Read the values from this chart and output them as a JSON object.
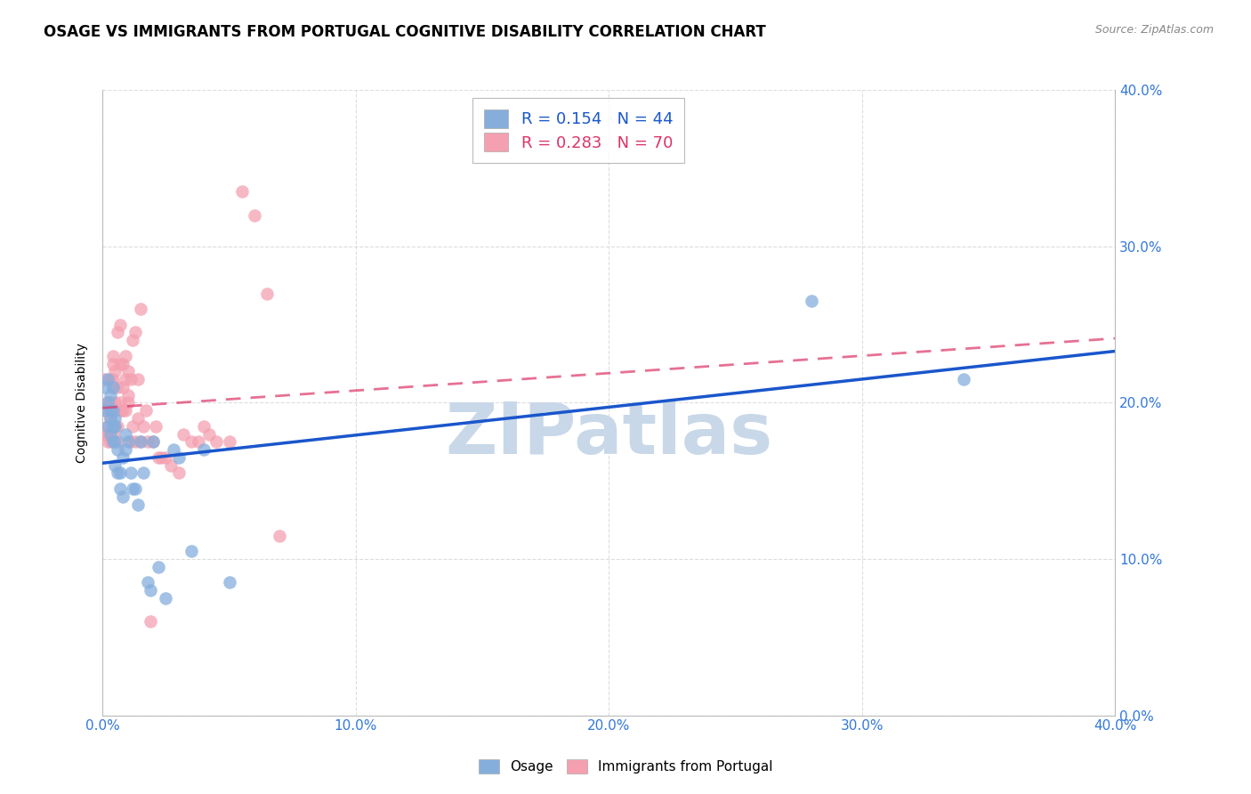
{
  "title": "OSAGE VS IMMIGRANTS FROM PORTUGAL COGNITIVE DISABILITY CORRELATION CHART",
  "source": "Source: ZipAtlas.com",
  "ylabel": "Cognitive Disability",
  "xlim": [
    0.0,
    0.4
  ],
  "ylim": [
    0.0,
    0.4
  ],
  "legend_labels": [
    "Osage",
    "Immigrants from Portugal"
  ],
  "osage_R": 0.154,
  "osage_N": 44,
  "portugal_R": 0.283,
  "portugal_N": 70,
  "osage_color": "#85AEDD",
  "portugal_color": "#F4A0B0",
  "osage_line_color": "#1A56CC",
  "portugal_line_color": "#DD3366",
  "watermark": "ZIPatlas",
  "watermark_color": "#C8D8E8",
  "title_fontsize": 12,
  "source_fontsize": 9,
  "tick_label_color": "#3377DD",
  "grid_color": "#DDDDDD",
  "osage_x": [
    0.001,
    0.001,
    0.002,
    0.002,
    0.002,
    0.003,
    0.003,
    0.003,
    0.003,
    0.004,
    0.004,
    0.004,
    0.004,
    0.005,
    0.005,
    0.005,
    0.005,
    0.006,
    0.006,
    0.007,
    0.007,
    0.008,
    0.008,
    0.009,
    0.009,
    0.01,
    0.011,
    0.012,
    0.013,
    0.014,
    0.015,
    0.016,
    0.018,
    0.019,
    0.02,
    0.022,
    0.025,
    0.028,
    0.03,
    0.035,
    0.04,
    0.05,
    0.28,
    0.34
  ],
  "osage_y": [
    0.195,
    0.21,
    0.2,
    0.215,
    0.185,
    0.195,
    0.18,
    0.205,
    0.19,
    0.185,
    0.175,
    0.195,
    0.21,
    0.19,
    0.185,
    0.16,
    0.175,
    0.17,
    0.155,
    0.155,
    0.145,
    0.165,
    0.14,
    0.18,
    0.17,
    0.175,
    0.155,
    0.145,
    0.145,
    0.135,
    0.175,
    0.155,
    0.085,
    0.08,
    0.175,
    0.095,
    0.075,
    0.17,
    0.165,
    0.105,
    0.17,
    0.085,
    0.265,
    0.215
  ],
  "portugal_x": [
    0.001,
    0.001,
    0.001,
    0.002,
    0.002,
    0.002,
    0.002,
    0.003,
    0.003,
    0.003,
    0.003,
    0.003,
    0.004,
    0.004,
    0.004,
    0.004,
    0.004,
    0.005,
    0.005,
    0.005,
    0.005,
    0.006,
    0.006,
    0.006,
    0.006,
    0.007,
    0.007,
    0.007,
    0.007,
    0.008,
    0.008,
    0.008,
    0.009,
    0.009,
    0.009,
    0.01,
    0.01,
    0.01,
    0.011,
    0.011,
    0.012,
    0.012,
    0.013,
    0.013,
    0.014,
    0.014,
    0.015,
    0.015,
    0.016,
    0.017,
    0.018,
    0.019,
    0.02,
    0.021,
    0.022,
    0.023,
    0.025,
    0.027,
    0.03,
    0.032,
    0.035,
    0.038,
    0.04,
    0.042,
    0.045,
    0.05,
    0.055,
    0.06,
    0.065,
    0.07
  ],
  "portugal_y": [
    0.18,
    0.195,
    0.215,
    0.18,
    0.2,
    0.185,
    0.175,
    0.175,
    0.19,
    0.2,
    0.195,
    0.215,
    0.18,
    0.215,
    0.225,
    0.21,
    0.23,
    0.185,
    0.195,
    0.2,
    0.22,
    0.175,
    0.245,
    0.185,
    0.21,
    0.195,
    0.25,
    0.225,
    0.2,
    0.21,
    0.195,
    0.225,
    0.215,
    0.23,
    0.195,
    0.2,
    0.22,
    0.205,
    0.175,
    0.215,
    0.185,
    0.24,
    0.175,
    0.245,
    0.19,
    0.215,
    0.175,
    0.26,
    0.185,
    0.195,
    0.175,
    0.06,
    0.175,
    0.185,
    0.165,
    0.165,
    0.165,
    0.16,
    0.155,
    0.18,
    0.175,
    0.175,
    0.185,
    0.18,
    0.175,
    0.175,
    0.335,
    0.32,
    0.27,
    0.115
  ]
}
